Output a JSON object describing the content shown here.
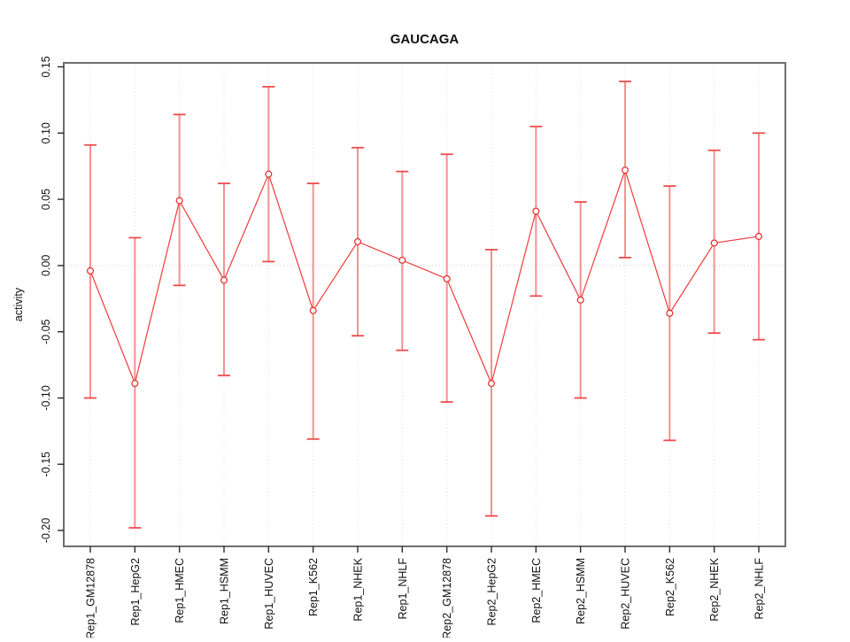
{
  "chart_data": {
    "type": "line",
    "title": "GAUCAGA",
    "ylabel": "activity",
    "xlabel": "",
    "categories": [
      "Rep1_GM12878",
      "Rep1_HepG2",
      "Rep1_HMEC",
      "Rep1_HSMM",
      "Rep1_HUVEC",
      "Rep1_K562",
      "Rep1_NHEK",
      "Rep1_NHLF",
      "Rep2_GM12878",
      "Rep2_HepG2",
      "Rep2_HMEC",
      "Rep2_HSMM",
      "Rep2_HUVEC",
      "Rep2_K562",
      "Rep2_NHEK",
      "Rep2_NHLF"
    ],
    "series": [
      {
        "name": "activity",
        "values": [
          -0.004,
          -0.089,
          0.049,
          -0.011,
          0.069,
          -0.034,
          0.018,
          0.004,
          -0.01,
          -0.089,
          0.041,
          -0.026,
          0.072,
          -0.036,
          0.017,
          0.022
        ]
      }
    ],
    "error_low": [
      -0.1,
      -0.198,
      -0.015,
      -0.083,
      0.003,
      -0.131,
      -0.053,
      -0.064,
      -0.103,
      -0.189,
      -0.023,
      -0.1,
      0.006,
      -0.132,
      -0.051,
      -0.056
    ],
    "error_high": [
      0.091,
      0.021,
      0.114,
      0.062,
      0.135,
      0.062,
      0.089,
      0.071,
      0.084,
      0.012,
      0.105,
      0.048,
      0.139,
      0.06,
      0.087,
      0.1
    ],
    "ylim": [
      -0.212,
      0.153
    ],
    "yticks": [
      0.15,
      0.1,
      0.05,
      0.0,
      -0.05,
      -0.1,
      -0.15,
      -0.2
    ],
    "ytick_labels": [
      "0.15",
      "0.10",
      "0.05",
      "0.00",
      "-0.05",
      "-0.10",
      "-0.15",
      "-0.20"
    ],
    "grid": "dotted vertical line per category; dotted horizontal line at y=0",
    "legend_position": "none",
    "colors": {
      "series_line": "#ef3b3b",
      "point_stroke": "#e73535",
      "point_fill": "#ffffff",
      "error_stem": "#f59090",
      "error_cap": "#ef4c4c",
      "grid_line": "#dcdcdc",
      "zero_line": "#c9c9c9",
      "frame": "#6e6e6e",
      "tick": "#2a2a2a"
    }
  }
}
